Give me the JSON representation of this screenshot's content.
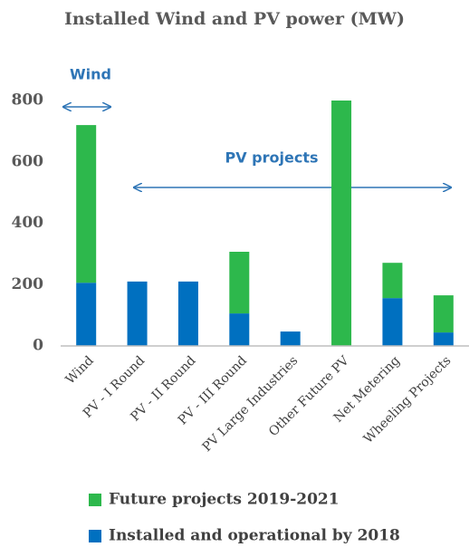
{
  "chart_data": {
    "type": "stacked_bar",
    "title": "Installed Wind and PV power (MW)",
    "categories": [
      "Wind",
      "PV - I Round",
      "PV - II Round",
      "PV - III Round",
      "PV Large Industries",
      "Other Future PV",
      "Net Metering",
      "Wheeling Projects"
    ],
    "series": [
      {
        "name": "Installed and operational by 2018",
        "color": "#0070c0",
        "values": [
          206,
          210,
          210,
          106,
          47,
          0,
          156,
          44
        ]
      },
      {
        "name": "Future projects 2019-2021",
        "color": "#2db84c",
        "values": [
          514,
          0,
          0,
          201,
          0,
          800,
          115,
          121
        ]
      }
    ],
    "legend_order": [
      1,
      0
    ],
    "ylim": [
      0,
      800
    ],
    "yticks": [
      0,
      200,
      400,
      600,
      800
    ],
    "annotations": [
      "Wind",
      "PV projects"
    ]
  }
}
